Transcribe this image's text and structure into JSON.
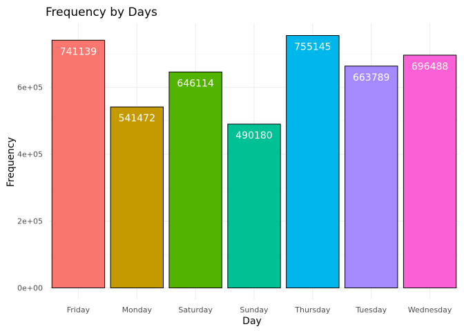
{
  "chart_data": {
    "type": "bar",
    "title": "Frequency by Days",
    "xlabel": "Day",
    "ylabel": "Frequency",
    "categories": [
      "Friday",
      "Monday",
      "Saturday",
      "Sunday",
      "Thursday",
      "Tuesday",
      "Wednesday"
    ],
    "values": [
      741139,
      541472,
      646114,
      490180,
      755145,
      663789,
      696488
    ],
    "value_labels": [
      "741139",
      "541472",
      "646114",
      "490180",
      "755145",
      "663789",
      "696488"
    ],
    "colors": [
      "#F8766D",
      "#C49A00",
      "#53B400",
      "#00C094",
      "#00B6EB",
      "#A58AFF",
      "#FB61D7"
    ],
    "ylim": [
      0,
      792902
    ],
    "yticks": [
      0,
      200000,
      400000,
      600000
    ],
    "ytick_labels": [
      "0e+00",
      "2e+05",
      "4e+05",
      "6e+05"
    ],
    "grid": true,
    "legend": "none"
  }
}
